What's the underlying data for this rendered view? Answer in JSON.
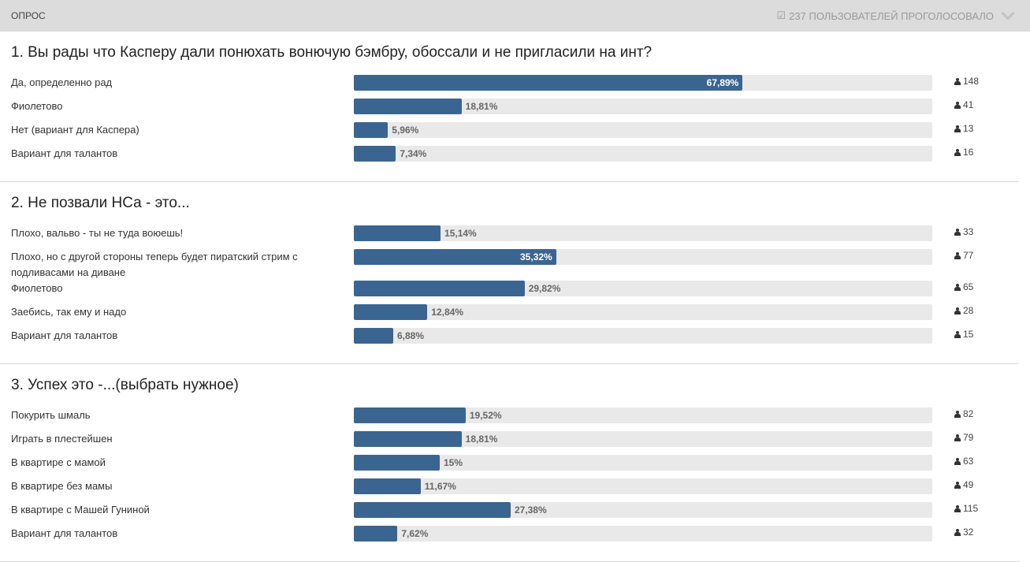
{
  "header": {
    "title": "ОПРОС",
    "voted_text": "237 ПОЛЬЗОВАТЕЛЕЙ ПРОГОЛОСОВАЛО"
  },
  "colors": {
    "bar": "#3b6591",
    "track": "#e9e9e9",
    "header_bg": "#dcdcdc"
  },
  "questions": [
    {
      "title": "1. Вы рады что Касперу дали понюхать вонючую бэмбру, обоссали и не пригласили на инт?",
      "options": [
        {
          "label": "Да, определенно рад",
          "percent": 67.89,
          "percent_text": "67,89%",
          "votes": "148"
        },
        {
          "label": "Фиолетово",
          "percent": 18.81,
          "percent_text": "18,81%",
          "votes": "41"
        },
        {
          "label": "Нет (вариант для Каспера)",
          "percent": 5.96,
          "percent_text": "5,96%",
          "votes": "13"
        },
        {
          "label": "Вариант для талантов",
          "percent": 7.34,
          "percent_text": "7,34%",
          "votes": "16"
        }
      ]
    },
    {
      "title": "2. Не позвали НСа - это...",
      "options": [
        {
          "label": "Плохо, вальво - ты не туда воюешь!",
          "percent": 15.14,
          "percent_text": "15,14%",
          "votes": "33"
        },
        {
          "label": "Плохо, но с другой стороны теперь будет пиратский стрим с подливасами на диване",
          "percent": 35.32,
          "percent_text": "35,32%",
          "votes": "77"
        },
        {
          "label": "Фиолетово",
          "percent": 29.82,
          "percent_text": "29,82%",
          "votes": "65"
        },
        {
          "label": "Заебись, так ему и надо",
          "percent": 12.84,
          "percent_text": "12,84%",
          "votes": "28"
        },
        {
          "label": "Вариант для талантов",
          "percent": 6.88,
          "percent_text": "6,88%",
          "votes": "15"
        }
      ]
    },
    {
      "title": "3. Успех это -...(выбрать нужное)",
      "options": [
        {
          "label": "Покурить шмаль",
          "percent": 19.52,
          "percent_text": "19,52%",
          "votes": "82"
        },
        {
          "label": "Играть в плестейшен",
          "percent": 18.81,
          "percent_text": "18,81%",
          "votes": "79"
        },
        {
          "label": "В квартире с мамой",
          "percent": 15,
          "percent_text": "15%",
          "votes": "63"
        },
        {
          "label": "В квартире без мамы",
          "percent": 11.67,
          "percent_text": "11,67%",
          "votes": "49"
        },
        {
          "label": "В квартире с Машей Гуниной",
          "percent": 27.38,
          "percent_text": "27,38%",
          "votes": "115"
        },
        {
          "label": "Вариант для талантов",
          "percent": 7.62,
          "percent_text": "7,62%",
          "votes": "32"
        }
      ]
    }
  ]
}
